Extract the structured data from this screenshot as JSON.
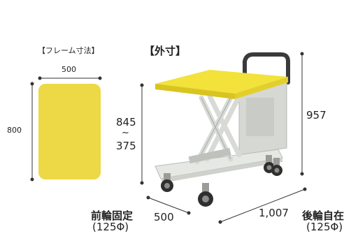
{
  "frame": {
    "title": "【フレーム寸法】",
    "width_label": "500",
    "length_label": "800",
    "colors": {
      "platform": "#ecd945"
    }
  },
  "exterior": {
    "title": "【外寸】",
    "height_max": "845",
    "height_sep": "~",
    "height_min": "375",
    "overall_height": "957",
    "depth_label": "500",
    "length_label": "1,007",
    "front_wheel_label": "前輪固定",
    "front_wheel_size": "(125Φ)",
    "rear_wheel_label": "後輪自在",
    "rear_wheel_size": "(125Φ)",
    "colors": {
      "table_top": "#f2e23a",
      "body": "#e6e8e4",
      "dimension_line": "#333333"
    }
  }
}
